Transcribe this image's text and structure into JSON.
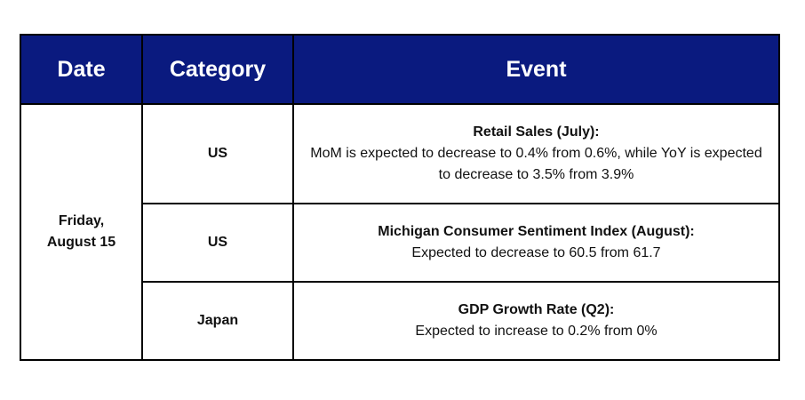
{
  "header": {
    "date": "Date",
    "category": "Category",
    "event": "Event"
  },
  "date_cell": {
    "line1": "Friday,",
    "line2": "August 15"
  },
  "rows": [
    {
      "category": "US",
      "title": "Retail Sales (July):",
      "description": "MoM is expected to decrease to 0.4% from 0.6%, while YoY is expected to decrease to 3.5% from 3.9%"
    },
    {
      "category": "US",
      "title": "Michigan Consumer Sentiment Index (August):",
      "description": "Expected to decrease to 60.5 from 61.7"
    },
    {
      "category": "Japan",
      "title": "GDP Growth Rate (Q2):",
      "description": "Expected to increase to 0.2% from 0%"
    }
  ],
  "colors": {
    "header_background": "#0a1a7f",
    "header_text": "#ffffff",
    "border": "#000000"
  }
}
